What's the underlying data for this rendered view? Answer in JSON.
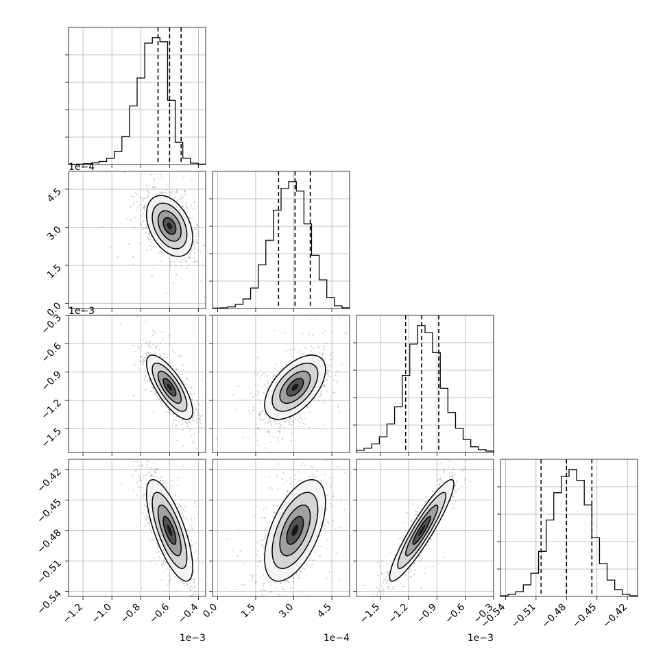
{
  "chart_data": {
    "type": "corner",
    "grid": true,
    "quantiles_marked": [
      0.16,
      0.5,
      0.84
    ],
    "parameters": [
      {
        "id": "p1",
        "range": [
          -1.3,
          -0.35
        ],
        "ticks": [
          -1.2,
          -1.0,
          -0.8,
          -0.6,
          -0.4
        ],
        "tick_labels": [
          "−1.2",
          "−1.0",
          "−0.8",
          "−0.6",
          "−0.4"
        ],
        "offset_label": "1e−3",
        "quantiles": [
          -0.68,
          -0.6,
          -0.52
        ],
        "hist_counts": [
          2,
          3,
          6,
          12,
          22,
          45,
          95,
          200,
          420,
          620,
          870,
          910,
          880,
          460,
          160,
          45,
          10,
          3
        ]
      },
      {
        "id": "p2",
        "range": [
          -0.2,
          5.2
        ],
        "ticks": [
          0.0,
          1.5,
          3.0,
          4.5
        ],
        "tick_labels": [
          "0.0",
          "1.5",
          "3.0",
          "4.5"
        ],
        "offset_label": "1e−4",
        "quantiles": [
          2.4,
          3.05,
          3.65
        ],
        "hist_counts": [
          3,
          5,
          12,
          30,
          70,
          150,
          320,
          500,
          720,
          880,
          930,
          860,
          620,
          390,
          210,
          80,
          20,
          5
        ]
      },
      {
        "id": "p3",
        "range": [
          -1.75,
          -0.3
        ],
        "ticks": [
          -1.5,
          -1.2,
          -0.9,
          -0.6,
          -0.3
        ],
        "tick_labels": [
          "−1.5",
          "−1.2",
          "−0.9",
          "−0.6",
          "−0.3"
        ],
        "offset_label": "1e−3",
        "quantiles": [
          -1.23,
          -1.06,
          -0.88
        ],
        "hist_counts": [
          15,
          30,
          60,
          110,
          200,
          320,
          540,
          760,
          890,
          840,
          700,
          450,
          280,
          170,
          90,
          40,
          20,
          10
        ]
      },
      {
        "id": "p4",
        "range": [
          -0.545,
          -0.41
        ],
        "ticks": [
          -0.54,
          -0.51,
          -0.48,
          -0.45,
          -0.42
        ],
        "tick_labels": [
          "−0.54",
          "−0.51",
          "−0.48",
          "−0.45",
          "−0.42"
        ],
        "offset_label": "",
        "quantiles": [
          -0.505,
          -0.48,
          -0.455
        ],
        "hist_counts": [
          5,
          15,
          35,
          85,
          170,
          330,
          560,
          760,
          880,
          930,
          850,
          670,
          430,
          240,
          120,
          50,
          15,
          5
        ]
      }
    ],
    "pairs": [
      {
        "x": "p1",
        "y": "p2",
        "center": [
          -0.6,
          3.05
        ],
        "sd": [
          0.08,
          0.6
        ],
        "rho": -0.38
      },
      {
        "x": "p1",
        "y": "p3",
        "center": [
          -0.6,
          -1.06
        ],
        "sd": [
          0.08,
          0.17
        ],
        "rho": -0.75
      },
      {
        "x": "p2",
        "y": "p3",
        "center": [
          3.05,
          -1.06
        ],
        "sd": [
          0.6,
          0.17
        ],
        "rho": 0.55
      },
      {
        "x": "p1",
        "y": "p4",
        "center": [
          -0.6,
          -0.48
        ],
        "sd": [
          0.08,
          0.025
        ],
        "rho": -0.72
      },
      {
        "x": "p2",
        "y": "p4",
        "center": [
          3.05,
          -0.48
        ],
        "sd": [
          0.6,
          0.025
        ],
        "rho": 0.55
      },
      {
        "x": "p3",
        "y": "p4",
        "center": [
          -1.06,
          -0.48
        ],
        "sd": [
          0.17,
          0.025
        ],
        "rho": 0.92
      }
    ]
  }
}
